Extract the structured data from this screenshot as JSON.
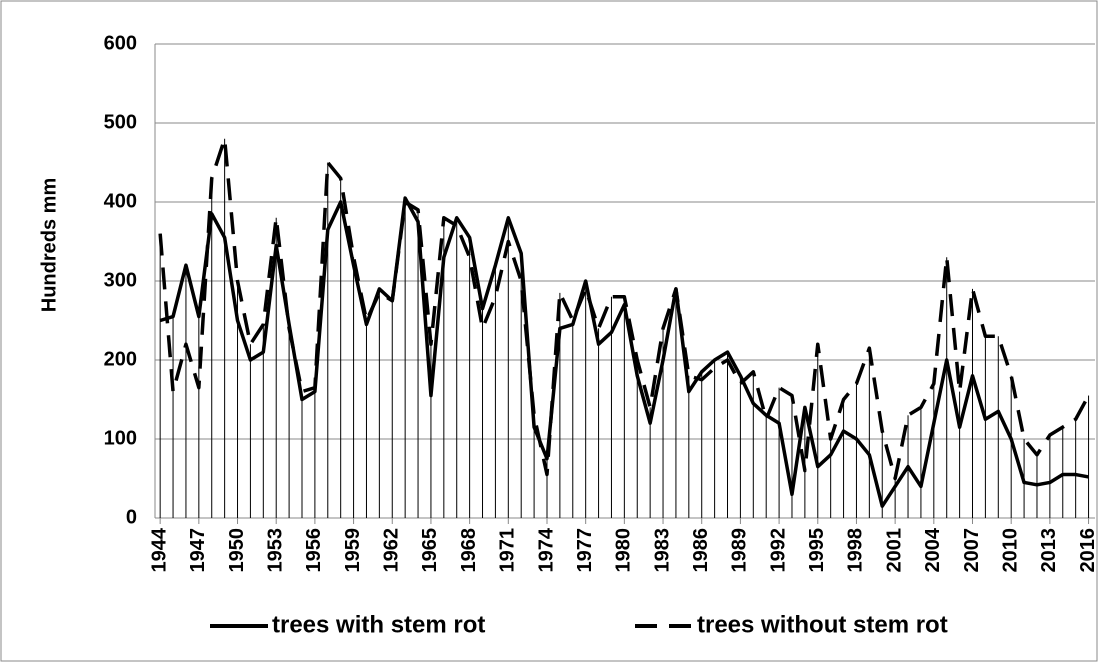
{
  "chart_data": {
    "type": "line",
    "y_label": "Hundreds mm",
    "x": [
      1944,
      1945,
      1946,
      1947,
      1948,
      1949,
      1950,
      1951,
      1952,
      1953,
      1954,
      1955,
      1956,
      1957,
      1958,
      1959,
      1960,
      1961,
      1962,
      1963,
      1964,
      1965,
      1966,
      1967,
      1968,
      1969,
      1970,
      1971,
      1972,
      1973,
      1974,
      1975,
      1976,
      1977,
      1978,
      1979,
      1980,
      1981,
      1982,
      1983,
      1984,
      1985,
      1986,
      1987,
      1988,
      1989,
      1990,
      1991,
      1992,
      1993,
      1994,
      1995,
      1996,
      1997,
      1998,
      1999,
      2000,
      2001,
      2002,
      2003,
      2004,
      2005,
      2006,
      2007,
      2008,
      2009,
      2010,
      2011,
      2012,
      2013,
      2014,
      2015,
      2016
    ],
    "series": [
      {
        "name": "trees with stem rot",
        "color": "#000000",
        "dash": false,
        "values": [
          250,
          255,
          320,
          255,
          385,
          355,
          250,
          200,
          210,
          345,
          245,
          150,
          160,
          365,
          400,
          320,
          245,
          290,
          275,
          405,
          375,
          155,
          330,
          380,
          355,
          265,
          320,
          380,
          335,
          115,
          75,
          240,
          245,
          300,
          220,
          235,
          270,
          180,
          120,
          200,
          290,
          160,
          185,
          200,
          210,
          180,
          145,
          130,
          120,
          30,
          140,
          65,
          80,
          110,
          100,
          80,
          15,
          40,
          65,
          40,
          120,
          200,
          115,
          180,
          125,
          135,
          100,
          45,
          42,
          45,
          55,
          55,
          52
        ]
      },
      {
        "name": "trees without stem rot",
        "color": "#000000",
        "dash": true,
        "values": [
          360,
          160,
          220,
          165,
          430,
          480,
          300,
          220,
          245,
          380,
          240,
          160,
          165,
          450,
          430,
          330,
          250,
          285,
          275,
          400,
          390,
          220,
          380,
          370,
          330,
          240,
          280,
          350,
          300,
          130,
          55,
          285,
          250,
          290,
          240,
          280,
          280,
          200,
          140,
          240,
          290,
          180,
          175,
          190,
          200,
          170,
          185,
          125,
          165,
          155,
          60,
          220,
          100,
          150,
          170,
          215,
          110,
          50,
          130,
          140,
          170,
          330,
          160,
          290,
          230,
          230,
          180,
          100,
          80,
          105,
          115,
          125,
          155
        ]
      }
    ],
    "xlim": [
      1943.6,
      2016.5
    ],
    "xticks": [
      1944,
      1947,
      1950,
      1953,
      1956,
      1959,
      1962,
      1965,
      1968,
      1971,
      1974,
      1977,
      1980,
      1983,
      1986,
      1989,
      1992,
      1995,
      1998,
      2001,
      2004,
      2007,
      2010,
      2013,
      2016
    ],
    "ylim": [
      0,
      600
    ],
    "yticks": [
      0,
      100,
      200,
      300,
      400,
      500,
      600
    ],
    "grid": true,
    "drop_lines": true,
    "legend": "bottom"
  }
}
